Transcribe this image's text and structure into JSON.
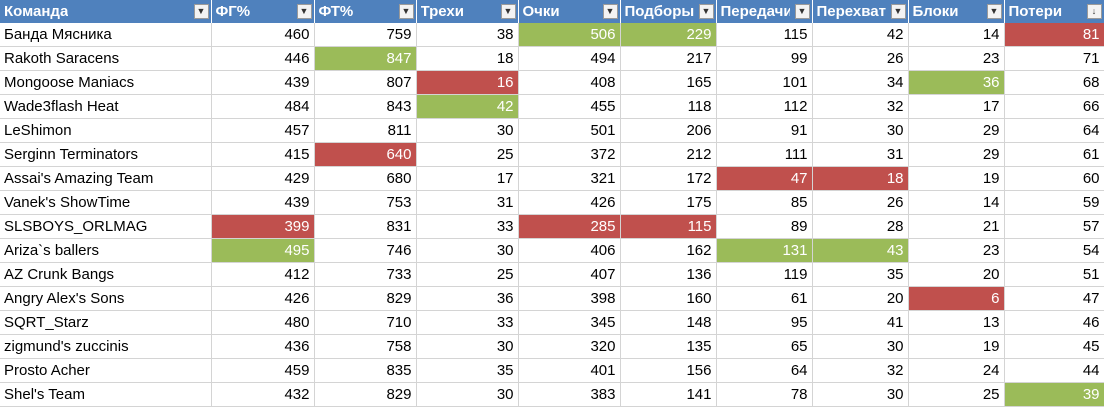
{
  "columns": [
    {
      "label": "Команда",
      "filter_icon": "chevron-down-icon"
    },
    {
      "label": "ФГ%",
      "filter_icon": "chevron-down-icon"
    },
    {
      "label": "ФТ%",
      "filter_icon": "chevron-down-icon"
    },
    {
      "label": "Трехи",
      "filter_icon": "chevron-down-icon"
    },
    {
      "label": "Очки",
      "filter_icon": "chevron-down-icon"
    },
    {
      "label": "Подборы",
      "filter_icon": "chevron-down-icon"
    },
    {
      "label": "Передачи",
      "filter_icon": "chevron-down-icon"
    },
    {
      "label": "Перехваты",
      "filter_icon": "chevron-down-icon"
    },
    {
      "label": "Блоки",
      "filter_icon": "chevron-down-icon"
    },
    {
      "label": "Потери",
      "filter_icon": "sort-descending-icon"
    }
  ],
  "highlight_colors": {
    "good": "#9bbb59",
    "bad": "#c0504d",
    "header": "#4f81bd"
  },
  "rows": [
    {
      "cells": [
        "Банда Мясника",
        "460",
        "759",
        "38",
        "506",
        "229",
        "115",
        "42",
        "14",
        "81"
      ],
      "hl": {
        "4": "good",
        "5": "good",
        "9": "bad"
      }
    },
    {
      "cells": [
        "Rakoth Saracens",
        "446",
        "847",
        "18",
        "494",
        "217",
        "99",
        "26",
        "23",
        "71"
      ],
      "hl": {
        "2": "good"
      }
    },
    {
      "cells": [
        "Mongoose Maniacs",
        "439",
        "807",
        "16",
        "408",
        "165",
        "101",
        "34",
        "36",
        "68"
      ],
      "hl": {
        "3": "bad",
        "8": "good"
      }
    },
    {
      "cells": [
        "Wade3flash Heat",
        "484",
        "843",
        "42",
        "455",
        "118",
        "112",
        "32",
        "17",
        "66"
      ],
      "hl": {
        "3": "good"
      }
    },
    {
      "cells": [
        "LeShimon",
        "457",
        "811",
        "30",
        "501",
        "206",
        "91",
        "30",
        "29",
        "64"
      ],
      "hl": {}
    },
    {
      "cells": [
        "Serginn Terminators",
        "415",
        "640",
        "25",
        "372",
        "212",
        "111",
        "31",
        "29",
        "61"
      ],
      "hl": {
        "2": "bad"
      }
    },
    {
      "cells": [
        "Assai's Amazing Team",
        "429",
        "680",
        "17",
        "321",
        "172",
        "47",
        "18",
        "19",
        "60"
      ],
      "hl": {
        "6": "bad",
        "7": "bad"
      }
    },
    {
      "cells": [
        "Vanek's ShowTime",
        "439",
        "753",
        "31",
        "426",
        "175",
        "85",
        "26",
        "14",
        "59"
      ],
      "hl": {}
    },
    {
      "cells": [
        "SLSBOYS_ORLMAG",
        "399",
        "831",
        "33",
        "285",
        "115",
        "89",
        "28",
        "21",
        "57"
      ],
      "hl": {
        "1": "bad",
        "4": "bad",
        "5": "bad"
      }
    },
    {
      "cells": [
        "Ariza`s ballers",
        "495",
        "746",
        "30",
        "406",
        "162",
        "131",
        "43",
        "23",
        "54"
      ],
      "hl": {
        "1": "good",
        "6": "good",
        "7": "good"
      }
    },
    {
      "cells": [
        "AZ Crunk Bangs",
        "412",
        "733",
        "25",
        "407",
        "136",
        "119",
        "35",
        "20",
        "51"
      ],
      "hl": {}
    },
    {
      "cells": [
        "Angry Alex's Sons",
        "426",
        "829",
        "36",
        "398",
        "160",
        "61",
        "20",
        "6",
        "47"
      ],
      "hl": {
        "8": "bad"
      }
    },
    {
      "cells": [
        "SQRT_Starz",
        "480",
        "710",
        "33",
        "345",
        "148",
        "95",
        "41",
        "13",
        "46"
      ],
      "hl": {}
    },
    {
      "cells": [
        "zigmund's zuccinis",
        "436",
        "758",
        "30",
        "320",
        "135",
        "65",
        "30",
        "19",
        "45"
      ],
      "hl": {}
    },
    {
      "cells": [
        "Prosto Acher",
        "459",
        "835",
        "35",
        "401",
        "156",
        "64",
        "32",
        "24",
        "44"
      ],
      "hl": {}
    },
    {
      "cells": [
        "Shel's Team",
        "432",
        "829",
        "30",
        "383",
        "141",
        "78",
        "30",
        "25",
        "39"
      ],
      "hl": {
        "9": "good"
      }
    }
  ]
}
